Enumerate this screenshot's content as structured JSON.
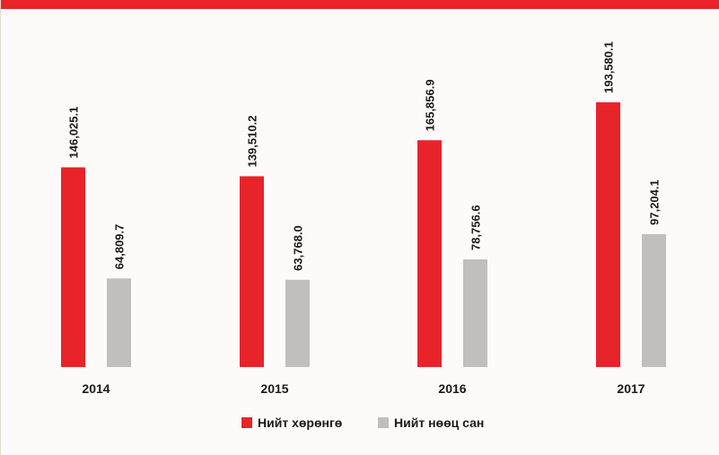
{
  "colors": {
    "accent": "#e8242b",
    "series1": "#e8242b",
    "series2": "#c0bfbd"
  },
  "chart_data": {
    "type": "bar",
    "title": "",
    "xlabel": "",
    "ylabel": "",
    "categories": [
      "2014",
      "2015",
      "2016",
      "2017"
    ],
    "series": [
      {
        "name": "Нийт хөрөнгө",
        "values": [
          146025.1,
          139510.2,
          165856.9,
          193580.1
        ],
        "labels": [
          "146,025.1",
          "139,510.2",
          "165,856.9",
          "193,580.1"
        ]
      },
      {
        "name": "Нийт нөөц сан",
        "values": [
          64809.7,
          63768.0,
          78756.6,
          97204.1
        ],
        "labels": [
          "64,809.7",
          "63,768.0",
          "78,756.6",
          "97,204.1"
        ]
      }
    ],
    "ylim": [
      0,
      200000
    ],
    "grid": false,
    "legend_position": "bottom-center"
  }
}
